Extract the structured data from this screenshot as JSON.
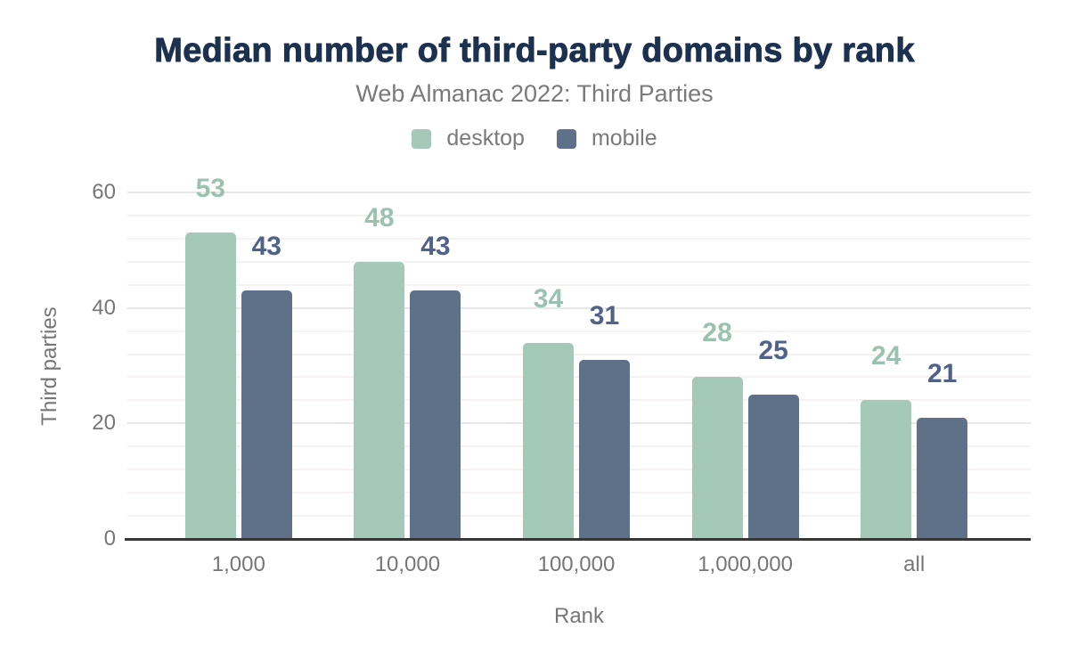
{
  "title": {
    "text": "Median number of third-party domains by rank",
    "color": "#1c3050"
  },
  "subtitle": {
    "text": "Web Almanac 2022: Third Parties",
    "color": "#7a7a7a"
  },
  "axis": {
    "line_color": "#363636",
    "tick_color": "#767676",
    "grid_major_color": "#e8e8e8",
    "grid_minor_color": "#f5f2f1"
  },
  "chart_data": {
    "type": "bar",
    "title": "Median number of third-party domains by rank",
    "subtitle": "Web Almanac 2022: Third Parties",
    "categories": [
      "1,000",
      "10,000",
      "100,000",
      "1,000,000",
      "all"
    ],
    "series": [
      {
        "name": "desktop",
        "color": "#a4c9b8",
        "label_color": "#9ac2ae",
        "values": [
          53,
          48,
          34,
          28,
          24
        ]
      },
      {
        "name": "mobile",
        "color": "#5f7189",
        "label_color": "#506289",
        "values": [
          43,
          43,
          31,
          25,
          21
        ]
      }
    ],
    "xlabel": "Rank",
    "ylabel": "Third parties",
    "ylim": [
      0,
      60
    ],
    "yticks": [
      0,
      20,
      40,
      60
    ],
    "minor_gridline_step": 4,
    "grid": true,
    "legend_position": "top",
    "bar_value_labels": true
  }
}
